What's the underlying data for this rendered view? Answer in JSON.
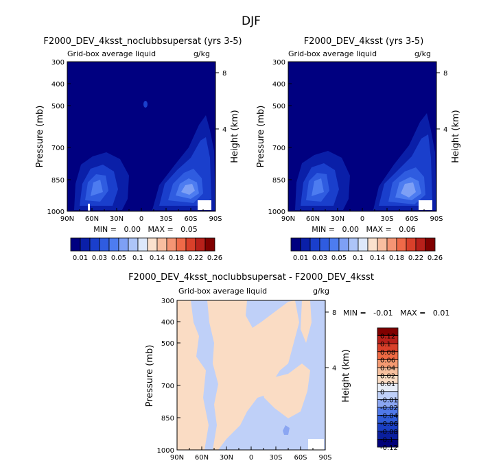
{
  "season": "DJF",
  "colors": {
    "panel_scale": [
      "#000080",
      "#0a1fa8",
      "#1a3fcc",
      "#2f5ce0",
      "#4d7cf0",
      "#7ea0f5",
      "#adc5f8",
      "#dde8fb",
      "#fbe1cd",
      "#f8bea0",
      "#f59574",
      "#ef6a48",
      "#d9402a",
      "#b8201a",
      "#800000"
    ],
    "diff_scale": [
      "#00007a",
      "#0a1f9e",
      "#1a3fc4",
      "#2f5cd8",
      "#5079e8",
      "#8ba6f2",
      "#bfd0f8",
      "#e8eef8",
      "#fadcc4",
      "#f7c09e",
      "#f49a72",
      "#ef6a44",
      "#d9402a",
      "#b8201a",
      "#800000"
    ]
  },
  "panels": [
    {
      "title": "F2000_DEV_4ksst_noclubbsupersat (yrs 3-5)",
      "subtitle_left": "Grid-box average liquid",
      "subtitle_right": "g/kg",
      "stats": "MIN =   0.00   MAX =   0.05"
    },
    {
      "title": "F2000_DEV_4ksst (yrs 3-5)",
      "subtitle_left": "Grid-box average liquid",
      "subtitle_right": "g/kg",
      "stats": "MIN =   0.00   MAX =   0.06"
    },
    {
      "title": "F2000_DEV_4ksst_noclubbsupersat - F2000_DEV_4ksst",
      "subtitle_left": "Grid-box average liquid",
      "subtitle_right": "g/kg",
      "stats": "MIN =   -0.01   MAX =   0.01"
    }
  ],
  "chart_data": [
    {
      "type": "heatmap",
      "title": "F2000_DEV_4ksst_noclubbsupersat (yrs 3-5)",
      "ylabel": "Pressure (mb)",
      "y2label": "Height (km)",
      "x_ticks": [
        "90N",
        "60N",
        "30N",
        "0",
        "30S",
        "60S",
        "90S"
      ],
      "y_ticks": [
        "300",
        "400",
        "500",
        "700",
        "850",
        "1000"
      ],
      "y2_ticks": [
        "8",
        "4"
      ],
      "min": 0.0,
      "max": 0.05,
      "colorbar_labels": [
        "0.01",
        "0.03",
        "0.05",
        "0.1",
        "0.14",
        "0.18",
        "0.22",
        "0.26"
      ]
    },
    {
      "type": "heatmap",
      "title": "F2000_DEV_4ksst (yrs 3-5)",
      "ylabel": "Pressure (mb)",
      "y2label": "Height (km)",
      "x_ticks": [
        "90N",
        "60N",
        "30N",
        "0",
        "30S",
        "60S",
        "90S"
      ],
      "y_ticks": [
        "300",
        "400",
        "500",
        "700",
        "850",
        "1000"
      ],
      "y2_ticks": [
        "8",
        "4"
      ],
      "min": 0.0,
      "max": 0.06,
      "colorbar_labels": [
        "0.01",
        "0.03",
        "0.05",
        "0.1",
        "0.14",
        "0.18",
        "0.22",
        "0.26"
      ]
    },
    {
      "type": "heatmap",
      "title": "F2000_DEV_4ksst_noclubbsupersat - F2000_DEV_4ksst",
      "ylabel": "Pressure (mb)",
      "y2label": "Height (km)",
      "x_ticks": [
        "90N",
        "60N",
        "30N",
        "0",
        "30S",
        "60S",
        "90S"
      ],
      "y_ticks": [
        "300",
        "400",
        "500",
        "700",
        "850",
        "1000"
      ],
      "y2_ticks": [
        "8",
        "4"
      ],
      "min": -0.01,
      "max": 0.01,
      "colorbar_labels": [
        "0.12",
        "0.1",
        "0.08",
        "0.06",
        "0.04",
        "0.02",
        "0.01",
        "0",
        "-0.01",
        "-0.02",
        "-0.04",
        "-0.06",
        "-0.08",
        "-0.1",
        "-0.12"
      ]
    }
  ]
}
